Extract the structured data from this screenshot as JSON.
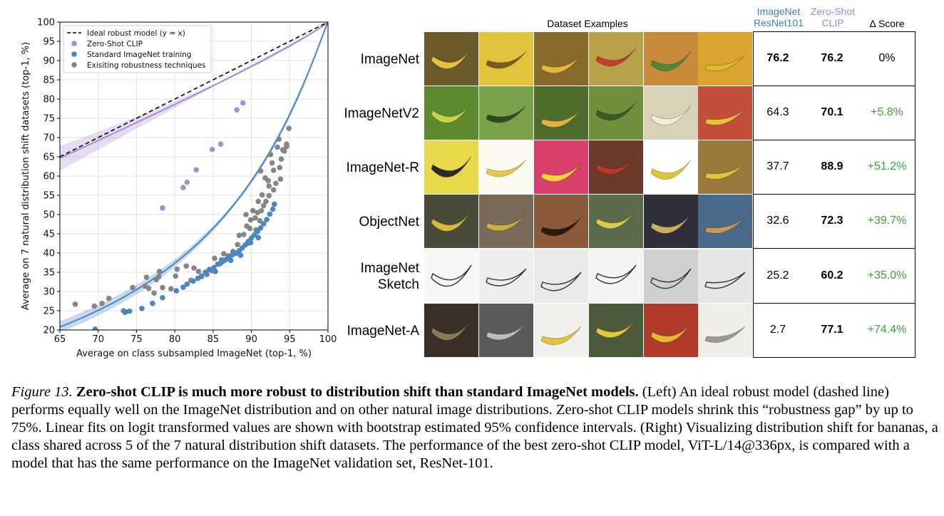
{
  "chart_data": {
    "type": "scatter",
    "xlabel": "Average on class subsampled ImageNet (top-1, %)",
    "ylabel": "Average on 7 natural distribution shift datasets (top-1, %)",
    "xlim": [
      65,
      100
    ],
    "ylim": [
      20,
      100
    ],
    "xticks": [
      "65",
      "70",
      "75",
      "80",
      "85",
      "90",
      "95",
      "100"
    ],
    "yticks": [
      "20",
      "25",
      "30",
      "35",
      "40",
      "45",
      "50",
      "55",
      "60",
      "65",
      "70",
      "75",
      "80",
      "85",
      "90",
      "95",
      "100"
    ],
    "grid": true,
    "legend_position": "top-left",
    "legend": [
      "Ideal robust model (y = x)",
      "Zero-Shot CLIP",
      "Standard ImageNet training",
      "Exisiting robustness techniques"
    ],
    "colors": {
      "ideal": "#000000",
      "clip": "#a98bd0",
      "standard": "#4b86c4",
      "robust": "#858585"
    },
    "series": [
      {
        "name": "Zero-Shot CLIP",
        "points": [
          [
            78.4,
            51.7
          ],
          [
            81.1,
            57
          ],
          [
            81.6,
            58.4
          ],
          [
            82.8,
            61.6
          ],
          [
            84.9,
            66.9
          ],
          [
            86,
            68.3
          ],
          [
            88.1,
            77.2
          ],
          [
            88.9,
            79
          ]
        ]
      },
      {
        "name": "Standard ImageNet training",
        "points": [
          [
            69.6,
            20.2
          ],
          [
            73.5,
            24.6
          ],
          [
            74.1,
            24.9
          ],
          [
            75.7,
            25.6
          ],
          [
            77.1,
            26.9
          ],
          [
            78.4,
            28.4
          ],
          [
            80.2,
            30.2
          ],
          [
            81.1,
            31.1
          ],
          [
            81.6,
            31.9
          ],
          [
            82.4,
            32.7
          ],
          [
            83,
            33.4
          ],
          [
            83.5,
            34
          ],
          [
            84,
            35
          ],
          [
            84.5,
            35.7
          ],
          [
            85.1,
            36.2
          ],
          [
            85.6,
            37.1
          ],
          [
            86.2,
            37.7
          ],
          [
            86.6,
            38.2
          ],
          [
            87,
            38.9
          ],
          [
            87.5,
            39.5
          ],
          [
            88,
            39.9
          ],
          [
            88.4,
            40.6
          ],
          [
            88.8,
            41.3
          ],
          [
            89.2,
            42.1
          ],
          [
            89.6,
            43
          ],
          [
            90,
            43.9
          ],
          [
            90.4,
            44.7
          ],
          [
            90.8,
            45.6
          ],
          [
            91.2,
            46.5
          ],
          [
            91.6,
            47.6
          ],
          [
            92,
            48.7
          ],
          [
            92.4,
            50.1
          ],
          [
            92.8,
            51.4
          ],
          [
            93,
            52.7
          ],
          [
            90.9,
            44
          ],
          [
            89.9,
            42.7
          ],
          [
            88.6,
            39.4
          ],
          [
            87.3,
            38.1
          ],
          [
            86.1,
            38.2
          ],
          [
            85.3,
            35.2
          ]
        ]
      },
      {
        "name": "Exisiting robustness techniques",
        "points": [
          [
            67,
            26.7
          ],
          [
            69.5,
            26.2
          ],
          [
            70.5,
            26.9
          ],
          [
            71.4,
            28.2
          ],
          [
            73.3,
            25
          ],
          [
            73.6,
            24.7
          ],
          [
            74.5,
            31
          ],
          [
            76.1,
            31.4
          ],
          [
            76.3,
            33.7
          ],
          [
            76.6,
            30.8
          ],
          [
            77.3,
            29.6
          ],
          [
            77.6,
            33.1
          ],
          [
            77.9,
            33.8
          ],
          [
            78,
            35.2
          ],
          [
            78.4,
            31
          ],
          [
            79.5,
            30.7
          ],
          [
            80.1,
            34
          ],
          [
            80.3,
            35.8
          ],
          [
            81.5,
            36.6
          ],
          [
            82.1,
            32.9
          ],
          [
            82.5,
            36.1
          ],
          [
            83.1,
            35.2
          ],
          [
            83.5,
            33.9
          ],
          [
            84.2,
            34.4
          ],
          [
            84.8,
            35.4
          ],
          [
            85.2,
            38.6
          ],
          [
            85.9,
            37.2
          ],
          [
            86.4,
            39.8
          ],
          [
            87,
            39.2
          ],
          [
            87.6,
            40.4
          ],
          [
            88.2,
            42.2
          ],
          [
            88.4,
            44.6
          ],
          [
            89,
            44.8
          ],
          [
            89.4,
            47
          ],
          [
            89.9,
            48.6
          ],
          [
            90.5,
            49.1
          ],
          [
            90.8,
            50.5
          ],
          [
            91.3,
            51
          ],
          [
            91.6,
            52.3
          ],
          [
            91.9,
            53.4
          ],
          [
            92.3,
            54.9
          ],
          [
            92.3,
            57.4
          ],
          [
            92.9,
            56.4
          ],
          [
            93.2,
            58.1
          ],
          [
            93.8,
            59.2
          ],
          [
            93.9,
            64.4
          ],
          [
            94.3,
            66.5
          ],
          [
            94.6,
            68.3
          ],
          [
            94.9,
            72.4
          ],
          [
            91.8,
            59.5
          ],
          [
            91.2,
            61.3
          ],
          [
            92.7,
            63.4
          ],
          [
            93.4,
            67.5
          ],
          [
            93.6,
            69.6
          ],
          [
            92.5,
            65.6
          ],
          [
            92.9,
            61.5
          ],
          [
            93.7,
            62.2
          ],
          [
            94.1,
            66.8
          ],
          [
            94.6,
            67.7
          ],
          [
            92.2,
            58.8
          ],
          [
            91.4,
            55.1
          ],
          [
            90.9,
            53.4
          ],
          [
            90.2,
            51
          ],
          [
            89.3,
            50
          ],
          [
            89.5,
            42.5
          ],
          [
            90.6,
            46
          ],
          [
            91.1,
            48.4
          ],
          [
            89.8,
            46.4
          ]
        ]
      }
    ]
  },
  "table": {
    "examples_header": "Dataset Examples",
    "col_resnet": [
      "ImageNet",
      "ResNet101"
    ],
    "col_clip": [
      "Zero-Shot",
      "CLIP"
    ],
    "col_delta": "Δ Score",
    "colors": {
      "resnet_header": "#3c7fc2",
      "clip_header": "#a986cf",
      "delta": "#3aa53a"
    },
    "rows": [
      {
        "label": "ImageNet",
        "resnet": "76.2",
        "clip": "76.2",
        "delta": "0%",
        "resnet_bold": true,
        "delta_plain": true
      },
      {
        "label": "ImageNetV2",
        "resnet": "64.3",
        "clip": "70.1",
        "delta": "+5.8%"
      },
      {
        "label": "ImageNet-R",
        "resnet": "37.7",
        "clip": "88.9",
        "delta": "+51.2%"
      },
      {
        "label": "ObjectNet",
        "resnet": "32.6",
        "clip": "72.3",
        "delta": "+39.7%"
      },
      {
        "label": "ImageNet\nSketch",
        "resnet": "25.2",
        "clip": "60.2",
        "delta": "+35.0%"
      },
      {
        "label": "ImageNet-A",
        "resnet": "2.7",
        "clip": "77.1",
        "delta": "+74.4%"
      }
    ]
  },
  "caption": {
    "figure": "Figure 13.",
    "title": "Zero-shot CLIP is much more robust to distribution shift than standard ImageNet models.",
    "body": "(Left) An ideal robust model (dashed line) performs equally well on the ImageNet distribution and on other natural image distributions. Zero-shot CLIP models shrink this “robustness gap” by up to 75%. Linear fits on logit transformed values are shown with bootstrap estimated 95% confidence intervals. (Right) Visualizing distribution shift for bananas, a class shared across 5 of the 7 natural distribution shift datasets. The performance of the best zero-shot CLIP model, ViT-L/14@336px, is compared with a model that has the same performance on the ImageNet validation set, ResNet-101."
  }
}
